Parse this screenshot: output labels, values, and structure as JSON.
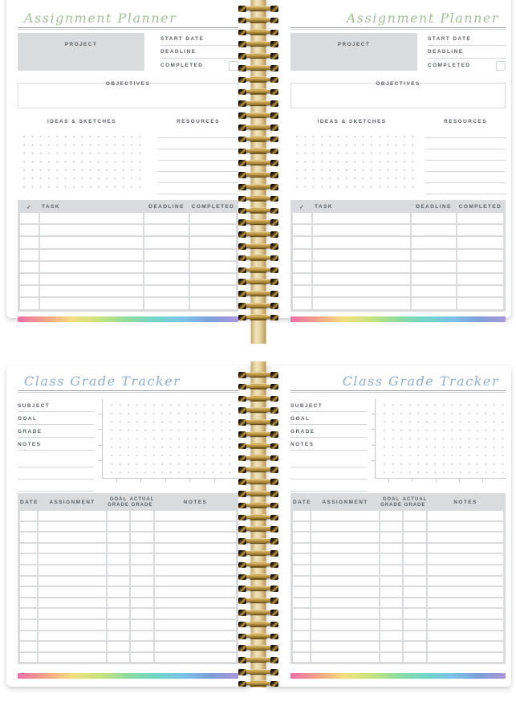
{
  "palette": {
    "panel_gray": "#d9dbdd",
    "line_gray": "#d4d7d9",
    "dot_gray": "#c7cacd",
    "axis_gray": "#c3c7ca",
    "gold": "#b3903e",
    "gold_dark": "#8a6b28"
  },
  "stripe_colors": [
    "#ee6fa8",
    "#f5a287",
    "#f2de7d",
    "#c5e47e",
    "#8edc9e",
    "#72d6c8",
    "#7cc2e8",
    "#7d9fdb",
    "#ab96d7"
  ],
  "binding": {
    "coils_per_spread": 27
  },
  "assignment": {
    "title": "Assignment Planner",
    "title_color": "#a5bf9b",
    "labels": {
      "project": "PROJECT",
      "start_date": "START DATE",
      "deadline": "DEADLINE",
      "completed": "COMPLETED",
      "objectives": "OBJECTIVES",
      "ideas": "IDEAS & SKETCHES",
      "resources": "RESOURCES"
    },
    "resources_line_count": 6,
    "task_table": {
      "check_header": "✓",
      "task_header": "TASK",
      "deadline_header": "DEADLINE",
      "completed_header": "COMPLETED",
      "row_count": 8
    }
  },
  "grade": {
    "title": "Class Grade Tracker",
    "title_color": "#8fafc7",
    "labels": {
      "subject": "SUBJECT",
      "goal": "GOAL",
      "grade": "GRADE",
      "notes": "NOTES"
    },
    "extra_line_count": 3,
    "chart": {
      "y_tick_count": 4,
      "x_tick_count": 5
    },
    "table": {
      "date_header": "DATE",
      "assignment_header": "ASSIGNMENT",
      "goal_header_line1": "GOAL",
      "goal_header_line2": "GRADE",
      "actual_header_line1": "ACTUAL",
      "actual_header_line2": "GRADE",
      "notes_header": "NOTES",
      "row_count": 14
    }
  }
}
